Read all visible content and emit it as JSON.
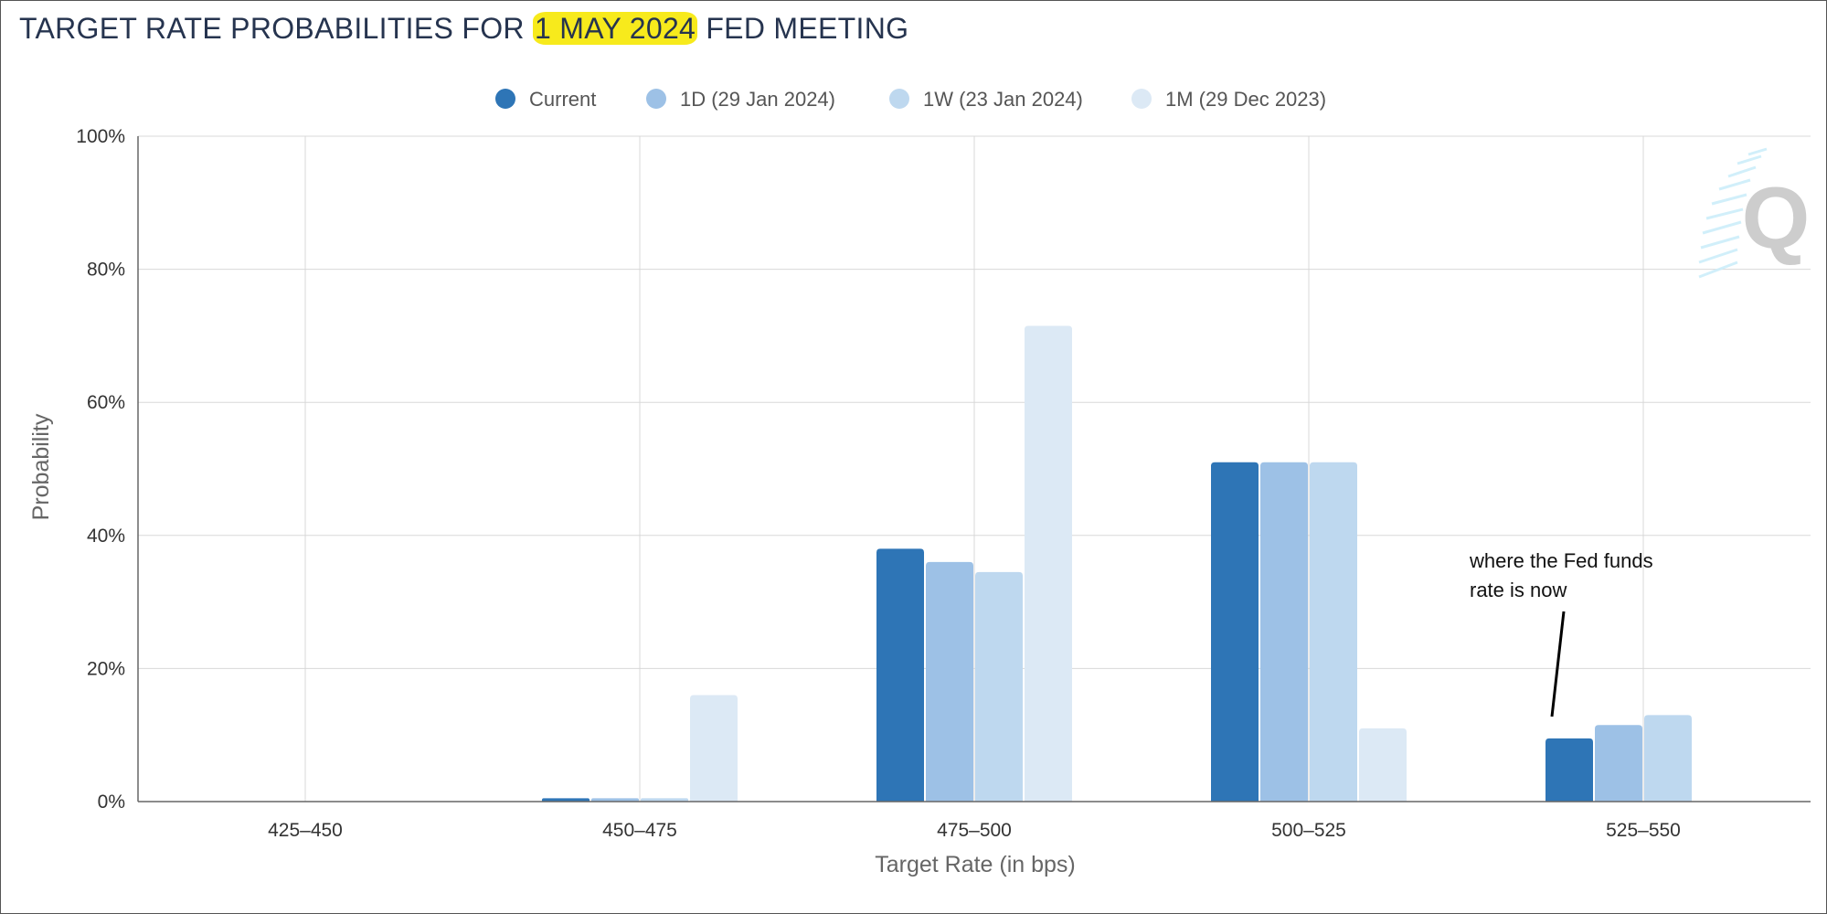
{
  "title": {
    "before": "TARGET RATE PROBABILITIES FOR ",
    "highlight": "1 MAY 2024",
    "after": " FED MEETING",
    "highlight_color": "#f7ea1c"
  },
  "chart_data": {
    "type": "bar",
    "title": "TARGET RATE PROBABILITIES FOR 1 MAY 2024 FED MEETING",
    "categories": [
      "425-450",
      "450-475",
      "475-500",
      "500-525",
      "525-550"
    ],
    "series": [
      {
        "name": "Current",
        "color": "#2e75b6",
        "values": [
          0,
          0.5,
          38,
          51,
          9.5
        ]
      },
      {
        "name": "1D (29 Jan 2024)",
        "color": "#9dc1e6",
        "values": [
          0,
          0.5,
          36,
          51,
          11.5
        ]
      },
      {
        "name": "1W (23 Jan 2024)",
        "color": "#bed8ef",
        "values": [
          0,
          0.5,
          34.5,
          51,
          13
        ]
      },
      {
        "name": "1M (29 Dec 2023)",
        "color": "#dce9f5",
        "values": [
          0,
          16,
          71.5,
          11,
          0
        ]
      }
    ],
    "xlabel": "Target Rate (in bps)",
    "ylabel": "Probability",
    "ylim": [
      0,
      100
    ],
    "yticks": [
      "0%",
      "20%",
      "40%",
      "60%",
      "80%",
      "100%"
    ],
    "grid": true,
    "legend_position": "top-center",
    "annotation": {
      "lines": [
        "where the Fed funds",
        "rate is now"
      ],
      "target_category": "525-550"
    }
  },
  "logo": {
    "letter": "Q"
  }
}
